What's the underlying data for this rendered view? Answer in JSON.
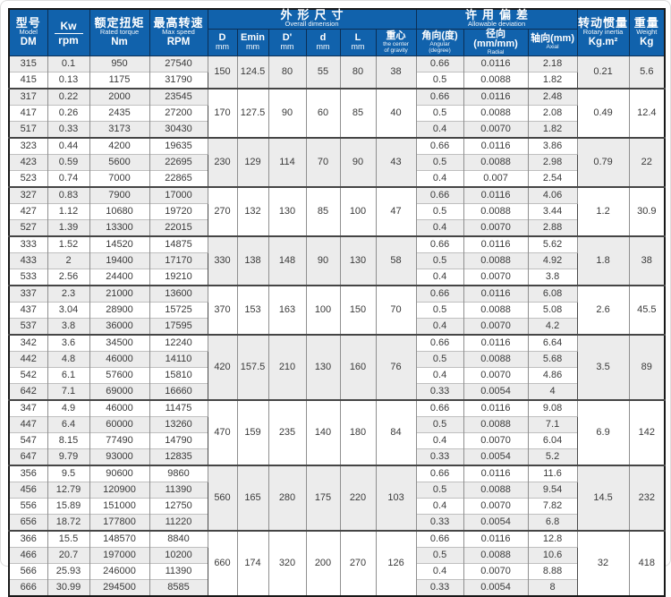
{
  "colors": {
    "header_blue": "#1162ac",
    "stripe_gray": "#ececec",
    "grid_dark": "#454545"
  },
  "header": {
    "model": {
      "zh": "型号",
      "en": "Model",
      "unit": "DM"
    },
    "power": {
      "top": "Kw",
      "bottom": "rpm"
    },
    "torque": {
      "zh": "额定扭矩",
      "en": "Rated torque",
      "unit": "Nm"
    },
    "speed": {
      "zh": "最高转速",
      "en": "Max speed",
      "unit": "RPM"
    },
    "dimension_group": {
      "zh": "外形尺寸",
      "en": "Overall dimension"
    },
    "dimension_cols": [
      {
        "l1": "D",
        "l2": "mm"
      },
      {
        "l1": "Emin",
        "l2": "mm"
      },
      {
        "l1": "D'",
        "l2": "mm"
      },
      {
        "l1": "d",
        "l2": "mm"
      },
      {
        "l1": "L",
        "l2": "mm"
      },
      {
        "l1": "重心",
        "l2": "the center",
        "l3": "of gravity"
      }
    ],
    "deviation_group": {
      "zh": "许用偏差",
      "en": "Allowable deviation"
    },
    "deviation_cols": [
      {
        "l1": "角向(度)",
        "l2": "Angular",
        "l3": "(degree)"
      },
      {
        "l1": "径向(mm/mm)",
        "l2": "Radial"
      },
      {
        "l1": "轴向(mm)",
        "l2": "Axial"
      }
    ],
    "inertia": {
      "zh": "转动惯量",
      "en": "Rotary inertia",
      "unit": "Kg.m²"
    },
    "weight": {
      "zh": "重量",
      "en": "Weight",
      "unit": "Kg"
    }
  },
  "groups": [
    {
      "dims": {
        "D": "150",
        "Emin": "124.5",
        "Dp": "80",
        "d": "55",
        "L": "80",
        "cg": "38"
      },
      "inertia": "0.21",
      "weight": "5.6",
      "rows": [
        {
          "model": "315",
          "kw": "0.1",
          "torque": "950",
          "speed": "27540",
          "ang": "0.66",
          "rad": "0.0116",
          "ax": "2.18"
        },
        {
          "model": "415",
          "kw": "0.13",
          "torque": "1175",
          "speed": "31790",
          "ang": "0.5",
          "rad": "0.0088",
          "ax": "1.82"
        }
      ]
    },
    {
      "dims": {
        "D": "170",
        "Emin": "127.5",
        "Dp": "90",
        "d": "60",
        "L": "85",
        "cg": "40"
      },
      "inertia": "0.49",
      "weight": "12.4",
      "rows": [
        {
          "model": "317",
          "kw": "0.22",
          "torque": "2000",
          "speed": "23545",
          "ang": "0.66",
          "rad": "0.0116",
          "ax": "2.48"
        },
        {
          "model": "417",
          "kw": "0.26",
          "torque": "2435",
          "speed": "27200",
          "ang": "0.5",
          "rad": "0.0088",
          "ax": "2.08"
        },
        {
          "model": "517",
          "kw": "0.33",
          "torque": "3173",
          "speed": "30430",
          "ang": "0.4",
          "rad": "0.0070",
          "ax": "1.82"
        }
      ]
    },
    {
      "dims": {
        "D": "230",
        "Emin": "129",
        "Dp": "114",
        "d": "70",
        "L": "90",
        "cg": "43"
      },
      "inertia": "0.79",
      "weight": "22",
      "rows": [
        {
          "model": "323",
          "kw": "0.44",
          "torque": "4200",
          "speed": "19635",
          "ang": "0.66",
          "rad": "0.0116",
          "ax": "3.86"
        },
        {
          "model": "423",
          "kw": "0.59",
          "torque": "5600",
          "speed": "22695",
          "ang": "0.5",
          "rad": "0.0088",
          "ax": "2.98"
        },
        {
          "model": "523",
          "kw": "0.74",
          "torque": "7000",
          "speed": "22865",
          "ang": "0.4",
          "rad": "0.007",
          "ax": "2.54"
        }
      ]
    },
    {
      "dims": {
        "D": "270",
        "Emin": "132",
        "Dp": "130",
        "d": "85",
        "L": "100",
        "cg": "47"
      },
      "inertia": "1.2",
      "weight": "30.9",
      "rows": [
        {
          "model": "327",
          "kw": "0.83",
          "torque": "7900",
          "speed": "17000",
          "ang": "0.66",
          "rad": "0.0116",
          "ax": "4.06"
        },
        {
          "model": "427",
          "kw": "1.12",
          "torque": "10680",
          "speed": "19720",
          "ang": "0.5",
          "rad": "0.0088",
          "ax": "3.44"
        },
        {
          "model": "527",
          "kw": "1.39",
          "torque": "13300",
          "speed": "22015",
          "ang": "0.4",
          "rad": "0.0070",
          "ax": "2.88"
        }
      ]
    },
    {
      "dims": {
        "D": "330",
        "Emin": "138",
        "Dp": "148",
        "d": "90",
        "L": "130",
        "cg": "58"
      },
      "inertia": "1.8",
      "weight": "38",
      "rows": [
        {
          "model": "333",
          "kw": "1.52",
          "torque": "14520",
          "speed": "14875",
          "ang": "0.66",
          "rad": "0.0116",
          "ax": "5.62"
        },
        {
          "model": "433",
          "kw": "2",
          "torque": "19400",
          "speed": "17170",
          "ang": "0.5",
          "rad": "0.0088",
          "ax": "4.92"
        },
        {
          "model": "533",
          "kw": "2.56",
          "torque": "24400",
          "speed": "19210",
          "ang": "0.4",
          "rad": "0.0070",
          "ax": "3.8"
        }
      ]
    },
    {
      "dims": {
        "D": "370",
        "Emin": "153",
        "Dp": "163",
        "d": "100",
        "L": "150",
        "cg": "70"
      },
      "inertia": "2.6",
      "weight": "45.5",
      "rows": [
        {
          "model": "337",
          "kw": "2.3",
          "torque": "21000",
          "speed": "13600",
          "ang": "0.66",
          "rad": "0.0116",
          "ax": "6.08"
        },
        {
          "model": "437",
          "kw": "3.04",
          "torque": "28900",
          "speed": "15725",
          "ang": "0.5",
          "rad": "0.0088",
          "ax": "5.08"
        },
        {
          "model": "537",
          "kw": "3.8",
          "torque": "36000",
          "speed": "17595",
          "ang": "0.4",
          "rad": "0.0070",
          "ax": "4.2"
        }
      ]
    },
    {
      "dims": {
        "D": "420",
        "Emin": "157.5",
        "Dp": "210",
        "d": "130",
        "L": "160",
        "cg": "76"
      },
      "inertia": "3.5",
      "weight": "89",
      "rows": [
        {
          "model": "342",
          "kw": "3.6",
          "torque": "34500",
          "speed": "12240",
          "ang": "0.66",
          "rad": "0.0116",
          "ax": "6.64"
        },
        {
          "model": "442",
          "kw": "4.8",
          "torque": "46000",
          "speed": "14110",
          "ang": "0.5",
          "rad": "0.0088",
          "ax": "5.68"
        },
        {
          "model": "542",
          "kw": "6.1",
          "torque": "57600",
          "speed": "15810",
          "ang": "0.4",
          "rad": "0.0070",
          "ax": "4.86"
        },
        {
          "model": "642",
          "kw": "7.1",
          "torque": "69000",
          "speed": "16660",
          "ang": "0.33",
          "rad": "0.0054",
          "ax": "4"
        }
      ]
    },
    {
      "dims": {
        "D": "470",
        "Emin": "159",
        "Dp": "235",
        "d": "140",
        "L": "180",
        "cg": "84"
      },
      "inertia": "6.9",
      "weight": "142",
      "rows": [
        {
          "model": "347",
          "kw": "4.9",
          "torque": "46000",
          "speed": "11475",
          "ang": "0.66",
          "rad": "0.0116",
          "ax": "9.08"
        },
        {
          "model": "447",
          "kw": "6.4",
          "torque": "60000",
          "speed": "13260",
          "ang": "0.5",
          "rad": "0.0088",
          "ax": "7.1"
        },
        {
          "model": "547",
          "kw": "8.15",
          "torque": "77490",
          "speed": "14790",
          "ang": "0.4",
          "rad": "0.0070",
          "ax": "6.04"
        },
        {
          "model": "647",
          "kw": "9.79",
          "torque": "93000",
          "speed": "12835",
          "ang": "0.33",
          "rad": "0.0054",
          "ax": "5.2"
        }
      ]
    },
    {
      "dims": {
        "D": "560",
        "Emin": "165",
        "Dp": "280",
        "d": "175",
        "L": "220",
        "cg": "103"
      },
      "inertia": "14.5",
      "weight": "232",
      "rows": [
        {
          "model": "356",
          "kw": "9.5",
          "torque": "90600",
          "speed": "9860",
          "ang": "0.66",
          "rad": "0.0116",
          "ax": "11.6"
        },
        {
          "model": "456",
          "kw": "12.79",
          "torque": "120900",
          "speed": "11390",
          "ang": "0.5",
          "rad": "0.0088",
          "ax": "9.54"
        },
        {
          "model": "556",
          "kw": "15.89",
          "torque": "151000",
          "speed": "12750",
          "ang": "0.4",
          "rad": "0.0070",
          "ax": "7.82"
        },
        {
          "model": "656",
          "kw": "18.72",
          "torque": "177800",
          "speed": "11220",
          "ang": "0.33",
          "rad": "0.0054",
          "ax": "6.8"
        }
      ]
    },
    {
      "dims": {
        "D": "660",
        "Emin": "174",
        "Dp": "320",
        "d": "200",
        "L": "270",
        "cg": "126"
      },
      "inertia": "32",
      "weight": "418",
      "rows": [
        {
          "model": "366",
          "kw": "15.5",
          "torque": "148570",
          "speed": "8840",
          "ang": "0.66",
          "rad": "0.0116",
          "ax": "12.8"
        },
        {
          "model": "466",
          "kw": "20.7",
          "torque": "197000",
          "speed": "10200",
          "ang": "0.5",
          "rad": "0.0088",
          "ax": "10.6"
        },
        {
          "model": "566",
          "kw": "25.93",
          "torque": "246000",
          "speed": "11390",
          "ang": "0.4",
          "rad": "0.0070",
          "ax": "8.88"
        },
        {
          "model": "666",
          "kw": "30.99",
          "torque": "294500",
          "speed": "8585",
          "ang": "0.33",
          "rad": "0.0054",
          "ax": "8"
        }
      ]
    }
  ]
}
